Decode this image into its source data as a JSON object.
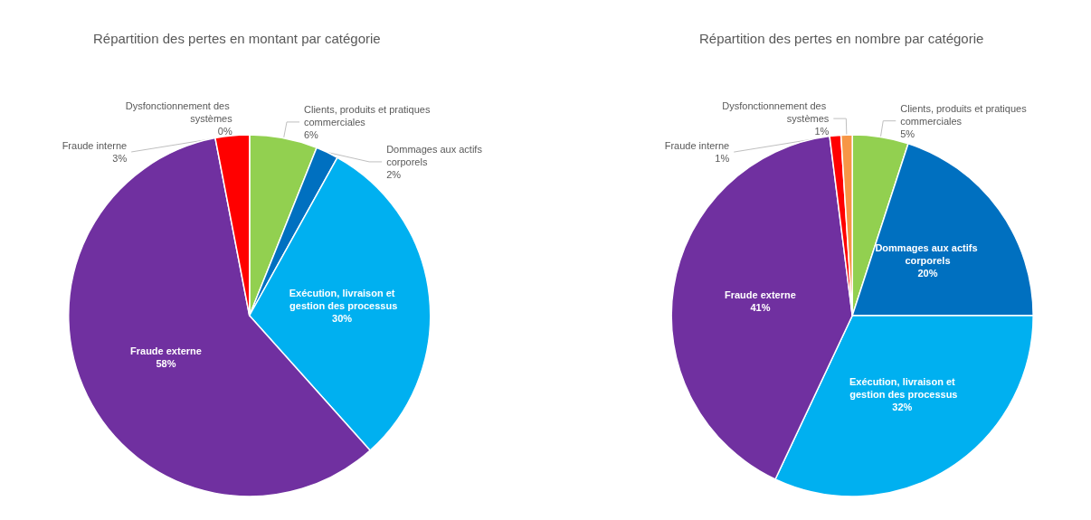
{
  "chart_data": [
    {
      "type": "pie",
      "title": "Répartition des pertes en montant par catégorie",
      "categories": [
        "Clients, produits et pratiques commerciales",
        "Dommages aux actifs corporels",
        "Exécution, livraison et gestion des processus",
        "Fraude externe",
        "Fraude interne",
        "Dysfonctionnement des systèmes"
      ],
      "values": [
        6,
        2,
        30,
        58,
        3,
        0
      ],
      "value_labels": [
        "6%",
        "2%",
        "30%",
        "58%",
        "3%",
        "0%"
      ],
      "colors": [
        "#92d050",
        "#0070c0",
        "#00b0f0",
        "#7030a0",
        "#ff0000",
        "#f79646"
      ],
      "legend": false
    },
    {
      "type": "pie",
      "title": "Répartition des pertes en nombre par catégorie",
      "categories": [
        "Clients, produits et pratiques commerciales",
        "Dommages aux actifs corporels",
        "Exécution, livraison et gestion des processus",
        "Fraude externe",
        "Fraude interne",
        "Dysfonctionnement des systèmes"
      ],
      "values": [
        5,
        20,
        32,
        41,
        1,
        1
      ],
      "value_labels": [
        "5%",
        "20%",
        "32%",
        "41%",
        "1%",
        "1%"
      ],
      "colors": [
        "#92d050",
        "#0070c0",
        "#00b0f0",
        "#7030a0",
        "#ff0000",
        "#f79646"
      ],
      "legend": false
    }
  ]
}
